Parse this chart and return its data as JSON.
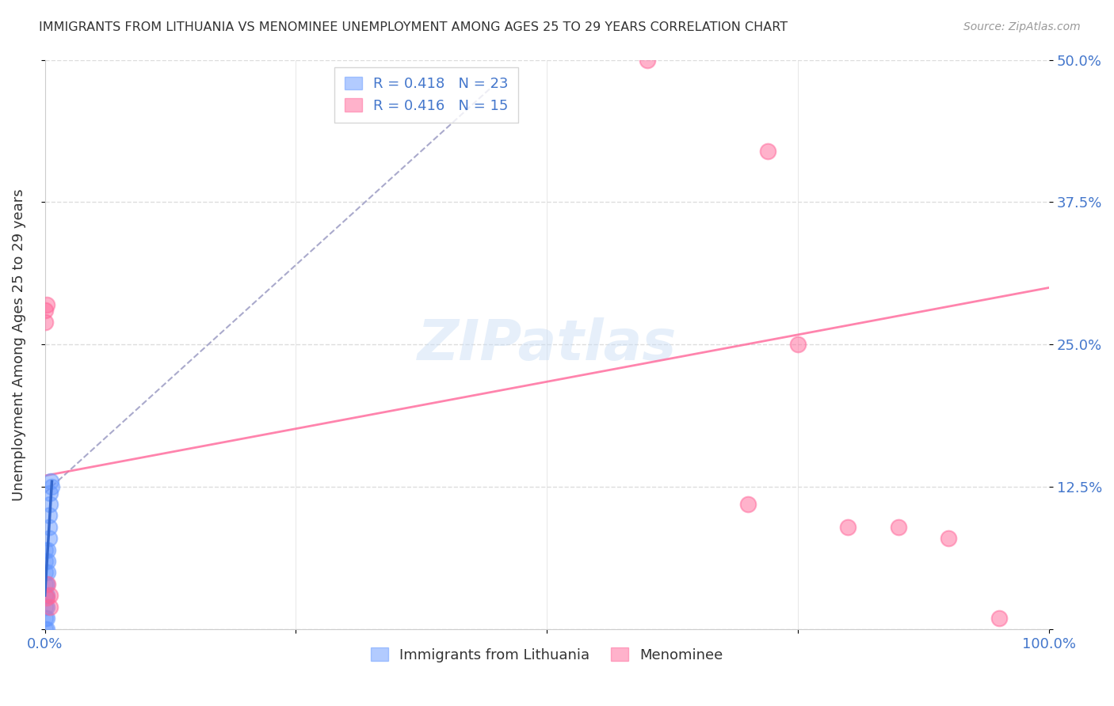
{
  "title": "IMMIGRANTS FROM LITHUANIA VS MENOMINEE UNEMPLOYMENT AMONG AGES 25 TO 29 YEARS CORRELATION CHART",
  "source": "Source: ZipAtlas.com",
  "xlabel": "",
  "ylabel": "Unemployment Among Ages 25 to 29 years",
  "xlim": [
    0,
    1.0
  ],
  "ylim": [
    0,
    0.5
  ],
  "yticks": [
    0,
    0.125,
    0.25,
    0.375,
    0.5
  ],
  "ytick_labels": [
    "",
    "12.5%",
    "25.0%",
    "37.5%",
    "50.0%"
  ],
  "xticks": [
    0,
    0.25,
    0.5,
    0.75,
    1.0
  ],
  "xtick_labels": [
    "0.0%",
    "",
    "",
    "",
    "100.0%"
  ],
  "legend_entries": [
    {
      "label": "R = 0.418   N = 23",
      "color": "#6699ff",
      "marker": "s"
    },
    {
      "label": "R = 0.416   N = 15",
      "color": "#ff6699",
      "marker": "s"
    }
  ],
  "legend_footer": [
    "Immigrants from Lithuania",
    "Menominee"
  ],
  "watermark": "ZIPatlas",
  "background_color": "#ffffff",
  "grid_color": "#dddddd",
  "title_color": "#333333",
  "axis_label_color": "#333333",
  "tick_color": "#4477cc",
  "lithuania_color": "#6699ff",
  "menominee_color": "#ff6699",
  "lithuania_dots": [
    [
      0.0,
      0.0
    ],
    [
      0.0,
      0.01
    ],
    [
      0.0,
      0.02
    ],
    [
      0.0,
      0.03
    ],
    [
      0.0,
      0.04
    ],
    [
      0.0,
      0.05
    ],
    [
      0.0,
      0.06
    ],
    [
      0.0,
      0.07
    ],
    [
      0.002,
      0.0
    ],
    [
      0.002,
      0.01
    ],
    [
      0.002,
      0.02
    ],
    [
      0.002,
      0.03
    ],
    [
      0.002,
      0.04
    ],
    [
      0.003,
      0.05
    ],
    [
      0.003,
      0.06
    ],
    [
      0.003,
      0.07
    ],
    [
      0.004,
      0.08
    ],
    [
      0.004,
      0.09
    ],
    [
      0.004,
      0.1
    ],
    [
      0.005,
      0.11
    ],
    [
      0.005,
      0.12
    ],
    [
      0.006,
      0.13
    ],
    [
      0.007,
      0.125
    ]
  ],
  "menominee_dots": [
    [
      0.0,
      0.27
    ],
    [
      0.0,
      0.28
    ],
    [
      0.002,
      0.285
    ],
    [
      0.002,
      0.028
    ],
    [
      0.003,
      0.04
    ],
    [
      0.005,
      0.02
    ],
    [
      0.005,
      0.03
    ],
    [
      0.6,
      0.5
    ],
    [
      0.72,
      0.42
    ],
    [
      0.75,
      0.25
    ],
    [
      0.7,
      0.11
    ],
    [
      0.8,
      0.09
    ],
    [
      0.85,
      0.09
    ],
    [
      0.9,
      0.08
    ],
    [
      0.95,
      0.01
    ]
  ],
  "lithuania_trend": {
    "x_start": 0.0,
    "x_end": 0.45,
    "y_start": 0.12,
    "y_end": 0.48
  },
  "menominee_trend": {
    "x_start": 0.0,
    "x_end": 1.0,
    "y_start": 0.135,
    "y_end": 0.3
  }
}
